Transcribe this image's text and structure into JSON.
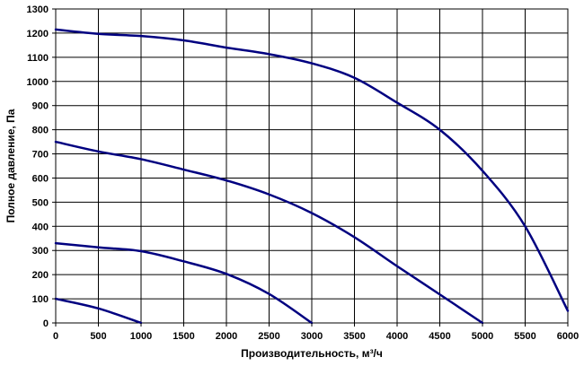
{
  "chart_data": {
    "type": "line",
    "title": "",
    "xlabel": "Производительность, м³/ч",
    "ylabel": "Полное давление, Па",
    "xlim": [
      0,
      6000
    ],
    "ylim": [
      0,
      1300
    ],
    "x_ticks": [
      0,
      500,
      1000,
      1500,
      2000,
      2500,
      3000,
      3500,
      4000,
      4500,
      5000,
      5500,
      6000
    ],
    "y_ticks": [
      0,
      100,
      200,
      300,
      400,
      500,
      600,
      700,
      800,
      900,
      1000,
      1100,
      1200,
      1300
    ],
    "grid": true,
    "legend": "none",
    "line_color": "#000080",
    "series": [
      {
        "x": [
          0,
          500,
          1000,
          1500,
          2000,
          2500,
          3000,
          3500,
          4000,
          4500,
          5000,
          5500,
          6000
        ],
        "y": [
          1215,
          1197,
          1188,
          1170,
          1140,
          1113,
          1075,
          1015,
          912,
          800,
          630,
          400,
          50
        ]
      },
      {
        "x": [
          0,
          500,
          1000,
          1500,
          2000,
          2500,
          3000,
          3500,
          4000,
          4500,
          5000
        ],
        "y": [
          750,
          710,
          678,
          635,
          590,
          532,
          455,
          355,
          235,
          118,
          0
        ]
      },
      {
        "x": [
          0,
          500,
          1000,
          1500,
          2000,
          2500,
          3000
        ],
        "y": [
          330,
          313,
          297,
          255,
          203,
          120,
          0
        ]
      },
      {
        "x": [
          0,
          500,
          1000
        ],
        "y": [
          100,
          60,
          0
        ]
      }
    ]
  }
}
